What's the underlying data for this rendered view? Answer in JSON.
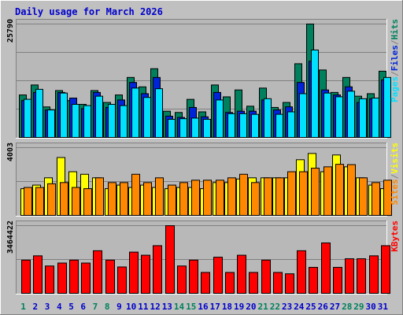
{
  "title": "Daily usage for March 2026",
  "colors": {
    "background": "#c0c0c0",
    "plot_bg": "#b8b8b8",
    "title": "#0000cc",
    "hits": "#00805c",
    "files": "#0024d8",
    "pages": "#00e0ff",
    "visits": "#ffff00",
    "sites": "#ff8800",
    "kbytes": "#ff0000",
    "weekend_day": "#00805c",
    "weekday": "#0000cc"
  },
  "chart_data": [
    {
      "type": "bar",
      "ymax_label": "25790",
      "ylim": [
        0,
        25790
      ],
      "categories": [
        "1",
        "2",
        "3",
        "4",
        "5",
        "6",
        "7",
        "8",
        "9",
        "10",
        "11",
        "12",
        "13",
        "14",
        "15",
        "16",
        "17",
        "18",
        "19",
        "20",
        "21",
        "22",
        "23",
        "24",
        "25",
        "26",
        "27",
        "28",
        "29",
        "30",
        "31"
      ],
      "series": [
        {
          "name": "Hits",
          "values": [
            9660,
            11930,
            6940,
            10660,
            8380,
            7520,
            10660,
            7950,
            9660,
            13640,
            11500,
            15630,
            5960,
            5680,
            8660,
            5820,
            11930,
            9230,
            10800,
            7100,
            11220,
            6820,
            7950,
            16760,
            25790,
            15340,
            10230,
            13640,
            9380,
            9950,
            15060
          ]
        },
        {
          "name": "Files",
          "values": [
            8380,
            10230,
            6250,
            10230,
            8950,
            6540,
            10230,
            6820,
            8520,
            12500,
            9950,
            13640,
            4830,
            4550,
            6820,
            4690,
            10230,
            5680,
            5970,
            5970,
            8520,
            6250,
            6960,
            12500,
            17330,
            10800,
            9660,
            11510,
            7950,
            8810,
            13070
          ]
        },
        {
          "name": "Pages",
          "values": [
            8670,
            10940,
            6250,
            10090,
            7520,
            7240,
            9380,
            7520,
            7240,
            11220,
            9100,
            11080,
            4120,
            4260,
            4400,
            4120,
            8520,
            5400,
            5400,
            5250,
            8810,
            5260,
            5820,
            9950,
            19880,
            10090,
            9240,
            10520,
            8800,
            8950,
            13640
          ]
        }
      ]
    },
    {
      "type": "bar",
      "ymax_label": "4003",
      "ylim": [
        0,
        4003
      ],
      "categories": [
        "1",
        "2",
        "3",
        "4",
        "5",
        "6",
        "7",
        "8",
        "9",
        "10",
        "11",
        "12",
        "13",
        "14",
        "15",
        "16",
        "17",
        "18",
        "19",
        "20",
        "21",
        "22",
        "23",
        "24",
        "25",
        "26",
        "27",
        "28",
        "29",
        "30",
        "31"
      ],
      "series": [
        {
          "name": "Visits",
          "values": [
            1580,
            1790,
            2220,
            3420,
            2580,
            2430,
            2220,
            1580,
            1790,
            1650,
            1790,
            1650,
            1580,
            1650,
            1650,
            1580,
            1940,
            1940,
            2150,
            2220,
            2220,
            2220,
            2220,
            3290,
            3660,
            2580,
            3570,
            2870,
            2220,
            1790,
            1580
          ]
        },
        {
          "name": "Sites",
          "values": [
            1650,
            1650,
            1870,
            1940,
            1650,
            1580,
            2220,
            1940,
            1940,
            2430,
            1940,
            2220,
            1790,
            1940,
            2080,
            2080,
            2080,
            2220,
            2430,
            1940,
            2220,
            2220,
            2580,
            2580,
            2790,
            2870,
            3020,
            3000,
            2220,
            1940,
            2080
          ]
        }
      ]
    },
    {
      "type": "bar",
      "ymax_label": "3464422",
      "ylim": [
        0,
        3464422
      ],
      "categories": [
        "1",
        "2",
        "3",
        "4",
        "5",
        "6",
        "7",
        "8",
        "9",
        "10",
        "11",
        "12",
        "13",
        "14",
        "15",
        "16",
        "17",
        "18",
        "19",
        "20",
        "21",
        "22",
        "23",
        "24",
        "25",
        "26",
        "27",
        "28",
        "29",
        "30",
        "31"
      ],
      "series": [
        {
          "name": "KBytes",
          "values": [
            1700000,
            1920000,
            1400000,
            1550000,
            1700000,
            1550000,
            2180000,
            1700000,
            1350000,
            2110000,
            1950000,
            2440000,
            3460000,
            1400000,
            1700000,
            1070000,
            1850000,
            1070000,
            1950000,
            1070000,
            1700000,
            1070000,
            1000000,
            2180000,
            1330000,
            2580000,
            1330000,
            1770000,
            1770000,
            1920000,
            2440000
          ]
        }
      ]
    }
  ],
  "day_labels": [
    {
      "text": "1",
      "weekend": true
    },
    {
      "text": "2",
      "weekend": false
    },
    {
      "text": "3",
      "weekend": false
    },
    {
      "text": "4",
      "weekend": false
    },
    {
      "text": "5",
      "weekend": false
    },
    {
      "text": "6",
      "weekend": false
    },
    {
      "text": "7",
      "weekend": true
    },
    {
      "text": "8",
      "weekend": true
    },
    {
      "text": "9",
      "weekend": false
    },
    {
      "text": "10",
      "weekend": false
    },
    {
      "text": "11",
      "weekend": false
    },
    {
      "text": "12",
      "weekend": false
    },
    {
      "text": "13",
      "weekend": false
    },
    {
      "text": "14",
      "weekend": true
    },
    {
      "text": "15",
      "weekend": true
    },
    {
      "text": "16",
      "weekend": false
    },
    {
      "text": "17",
      "weekend": false
    },
    {
      "text": "18",
      "weekend": false
    },
    {
      "text": "19",
      "weekend": false
    },
    {
      "text": "20",
      "weekend": false
    },
    {
      "text": "21",
      "weekend": true
    },
    {
      "text": "22",
      "weekend": true
    },
    {
      "text": "23",
      "weekend": false
    },
    {
      "text": "24",
      "weekend": false
    },
    {
      "text": "25",
      "weekend": false
    },
    {
      "text": "26",
      "weekend": false
    },
    {
      "text": "27",
      "weekend": false
    },
    {
      "text": "28",
      "weekend": true
    },
    {
      "text": "29",
      "weekend": true
    },
    {
      "text": "30",
      "weekend": false
    },
    {
      "text": "31",
      "weekend": false
    }
  ],
  "legend": {
    "panel1": [
      "Pages",
      "/",
      "Files",
      "/",
      "Hits"
    ],
    "panel2": [
      "Sites",
      "/",
      "Visits"
    ],
    "panel3": [
      "KBytes"
    ]
  }
}
